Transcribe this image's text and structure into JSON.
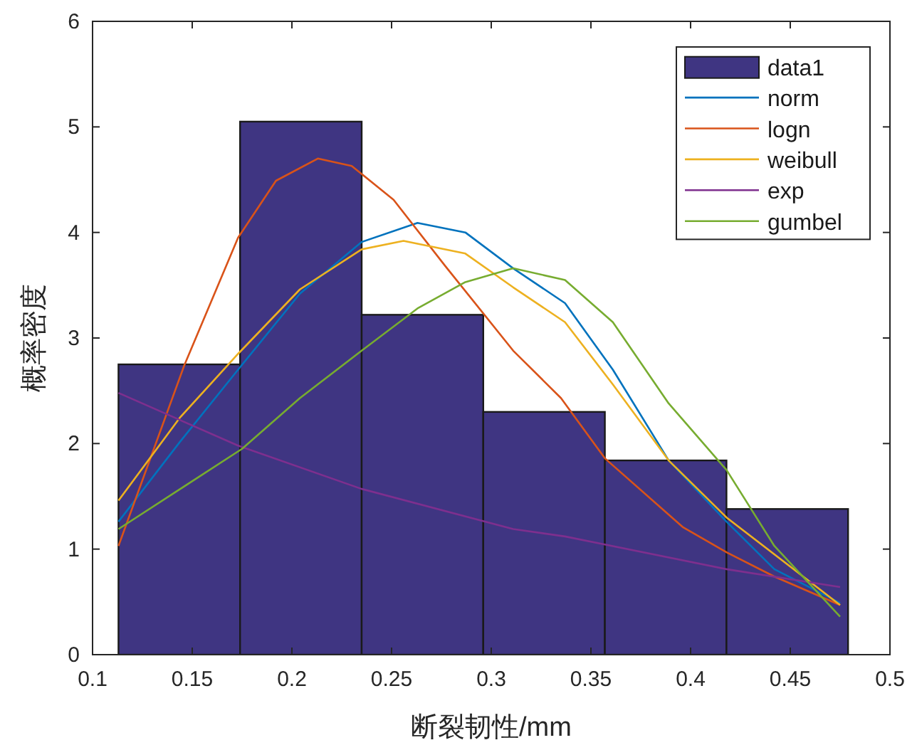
{
  "chart_data": {
    "type": "histogram",
    "xlabel": "断裂韧性/mm",
    "ylabel": "概率密度",
    "xlim": [
      0.1,
      0.5
    ],
    "ylim": [
      0,
      6
    ],
    "xticks": [
      0.1,
      0.15,
      0.2,
      0.25,
      0.3,
      0.35,
      0.4,
      0.45,
      0.5
    ],
    "yticks": [
      0,
      1,
      2,
      3,
      4,
      5,
      6
    ],
    "legend": "top right",
    "grid": false,
    "series": [
      {
        "name": "data1",
        "type": "histogram",
        "color": "#3f3582",
        "bins": [
          0.113,
          0.174,
          0.235,
          0.296,
          0.357,
          0.418,
          0.479
        ],
        "values": [
          2.75,
          5.05,
          3.22,
          2.3,
          1.84,
          1.38
        ]
      },
      {
        "name": "norm",
        "type": "line",
        "color": "#0072bd",
        "x": [
          0.113,
          0.144,
          0.173,
          0.204,
          0.235,
          0.263,
          0.287,
          0.311,
          0.337,
          0.361,
          0.389,
          0.418,
          0.442,
          0.475
        ],
        "values": [
          1.26,
          2.02,
          2.7,
          3.42,
          3.91,
          4.09,
          4.0,
          3.66,
          3.33,
          2.7,
          1.84,
          1.26,
          0.81,
          0.49
        ]
      },
      {
        "name": "logn",
        "type": "line",
        "color": "#d95319",
        "x": [
          0.113,
          0.146,
          0.173,
          0.192,
          0.213,
          0.23,
          0.251,
          0.277,
          0.311,
          0.335,
          0.357,
          0.396,
          0.418,
          0.442,
          0.475
        ],
        "values": [
          1.03,
          2.74,
          3.95,
          4.49,
          4.7,
          4.63,
          4.31,
          3.68,
          2.88,
          2.43,
          1.86,
          1.21,
          0.97,
          0.74,
          0.47
        ]
      },
      {
        "name": "weibull",
        "type": "line",
        "color": "#edb120",
        "x": [
          0.113,
          0.144,
          0.173,
          0.204,
          0.235,
          0.256,
          0.287,
          0.311,
          0.337,
          0.361,
          0.389,
          0.418,
          0.475
        ],
        "values": [
          1.46,
          2.25,
          2.85,
          3.46,
          3.84,
          3.92,
          3.8,
          3.48,
          3.15,
          2.56,
          1.84,
          1.3,
          0.47
        ]
      },
      {
        "name": "exp",
        "type": "line",
        "color": "#7e2f8e",
        "x": [
          0.113,
          0.173,
          0.235,
          0.311,
          0.337,
          0.418,
          0.475
        ],
        "values": [
          2.48,
          1.98,
          1.57,
          1.19,
          1.12,
          0.81,
          0.64
        ]
      },
      {
        "name": "gumbel",
        "type": "line",
        "color": "#77ac30",
        "x": [
          0.113,
          0.144,
          0.175,
          0.204,
          0.235,
          0.263,
          0.287,
          0.311,
          0.337,
          0.361,
          0.389,
          0.418,
          0.442,
          0.475
        ],
        "values": [
          1.19,
          1.57,
          1.95,
          2.43,
          2.88,
          3.28,
          3.53,
          3.66,
          3.55,
          3.15,
          2.38,
          1.75,
          1.03,
          0.36
        ]
      }
    ]
  }
}
